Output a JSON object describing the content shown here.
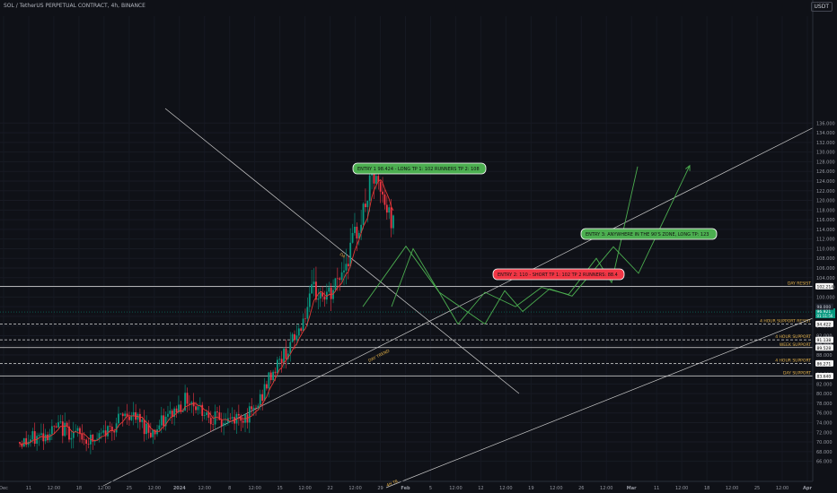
{
  "header": {
    "symbol": "SOL / TetherUS PERPETUAL CONTRACT, 4h, BINANCE",
    "currency": "USDT"
  },
  "chart_data": {
    "type": "candlestick",
    "symbol": "SOL / TetherUS PERPETUAL CONTRACT",
    "interval": "4h",
    "exchange": "BINANCE",
    "ylim": [
      65.5,
      137.5
    ],
    "y_ticks": [
      66,
      68,
      70,
      72,
      74,
      76,
      78,
      80,
      82,
      84,
      86,
      88,
      90,
      92,
      94,
      96,
      98,
      100,
      102,
      104,
      106,
      108,
      110,
      112,
      114,
      116,
      118,
      120,
      122,
      124,
      126,
      128,
      130,
      132,
      134,
      136
    ],
    "x_ticks": [
      "Dec",
      "11",
      "12:00",
      "18",
      "12:00",
      "25",
      "12:00",
      "2024",
      "12:00",
      "8",
      "12:00",
      "15",
      "12:00",
      "22",
      "12:00",
      "29",
      "Feb",
      "5",
      "12:00",
      "12",
      "12:00",
      "19",
      "12:00",
      "26",
      "12:00",
      "Mar",
      "11",
      "12:00",
      "18",
      "12:00",
      "25",
      "12:00",
      "Apr"
    ],
    "levels": [
      {
        "label": "DAY RESIST",
        "value": 102.214,
        "badge": "102.214",
        "style": "solid",
        "color": "#e8e8e8"
      },
      {
        "label": "4 HOUR SUPPORT RESIST",
        "value": 94.422,
        "badge": "94.422",
        "style": "dashed",
        "color": "#d9d9d9"
      },
      {
        "label": "4 HOUR SUPPORT",
        "value": 91.138,
        "badge": "91.138",
        "style": "dashed",
        "color": "#d9d9d9"
      },
      {
        "label": "WEEK SUPPORT",
        "value": 89.528,
        "badge": "89.528",
        "style": "solid",
        "color": "#d9d9d9"
      },
      {
        "label": "4 HOUR SUPPORT",
        "value": 86.271,
        "badge": "86.271",
        "style": "dashed",
        "color": "#d9d9d9"
      },
      {
        "label": "DAY SUPPORT",
        "value": 83.64,
        "badge": "83.640",
        "style": "solid",
        "color": "#d9d9d9"
      }
    ],
    "current_price": {
      "value": 96.9,
      "label": "96.921",
      "countdown": "01:11:56",
      "color": "#089981"
    },
    "sample_badge": "98.000",
    "trendline_labels": {
      "resist": "DA",
      "day_trend": "DAY TREND",
      "bottom": "4H TR"
    },
    "annotations": [
      {
        "text": "ENTRY 1 98.424 - LONG      TP 1: 102     RUNNERS TP 2: 108",
        "color": "#4caf50"
      },
      {
        "text": "ENTRY 2:  110 - SHORT    TP 1:  102    TP 2 RUNNERS: 88.4",
        "color": "#f23645"
      },
      {
        "text": "ENTRY 3: ANYWHERE IN THE 90'S ZONE, LONG           TP: 123",
        "color": "#4caf50"
      }
    ],
    "candle_path": [
      [
        70,
        1
      ],
      [
        73,
        5
      ],
      [
        70,
        9
      ],
      [
        76,
        13
      ],
      [
        72,
        16
      ],
      [
        79,
        20
      ],
      [
        74,
        24
      ],
      [
        76,
        28
      ],
      [
        84,
        30
      ],
      [
        92,
        33
      ],
      [
        101,
        35
      ],
      [
        100,
        37
      ],
      [
        108,
        39
      ],
      [
        118,
        41
      ],
      [
        125,
        42
      ],
      [
        113,
        45
      ],
      [
        117,
        47
      ],
      [
        110,
        50
      ],
      [
        106,
        53
      ],
      [
        103,
        56
      ],
      [
        101,
        58
      ],
      [
        110,
        60
      ],
      [
        116,
        61
      ],
      [
        108,
        64
      ],
      [
        103,
        66
      ],
      [
        101,
        70
      ],
      [
        97,
        73
      ],
      [
        94,
        76
      ],
      [
        99,
        79
      ],
      [
        106,
        81
      ],
      [
        101,
        84
      ],
      [
        98,
        86
      ],
      [
        100,
        89
      ],
      [
        102,
        92
      ],
      [
        97,
        94
      ],
      [
        98,
        96
      ],
      [
        95,
        98
      ],
      [
        96,
        100
      ],
      [
        92,
        101
      ],
      [
        88,
        103
      ],
      [
        84,
        104
      ],
      [
        81,
        106
      ],
      [
        84,
        108
      ],
      [
        87,
        110
      ],
      [
        88,
        112
      ],
      [
        91,
        114
      ],
      [
        93,
        116
      ],
      [
        97,
        118
      ]
    ],
    "projections": [
      {
        "color": "#4caf50",
        "points": [
          [
            436,
            98
          ],
          [
            460,
            110
          ],
          [
            489,
            101
          ],
          [
            510,
            94.4
          ],
          [
            540,
            101
          ],
          [
            574,
            98
          ],
          [
            603,
            102
          ],
          [
            633,
            100.5
          ],
          [
            664,
            108
          ],
          [
            681,
            103
          ],
          [
            710,
            127
          ]
        ]
      },
      {
        "color": "#4caf50",
        "points": [
          [
            404,
            98
          ],
          [
            452,
            110.5
          ],
          [
            489,
            101
          ],
          [
            540,
            94.4
          ]
        ]
      },
      {
        "color": "#4caf50",
        "points": [
          [
            540,
            94.4
          ],
          [
            562,
            101.3
          ],
          [
            582,
            97
          ],
          [
            612,
            101.7
          ],
          [
            637,
            100.2
          ],
          [
            683,
            110.4
          ],
          [
            711,
            104.9
          ],
          [
            768,
            127.2
          ]
        ]
      }
    ]
  }
}
